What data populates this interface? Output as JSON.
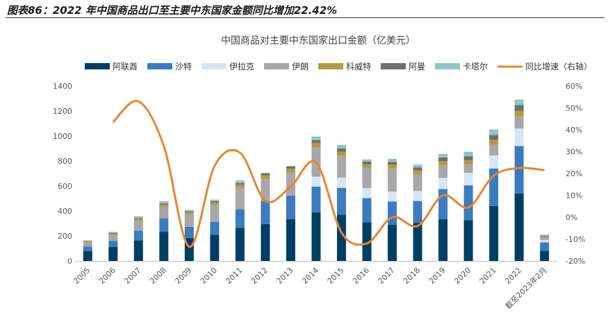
{
  "caption": "图表86：2022 年中国商品出口至主要中东国家金额同比增加22.42%",
  "chart_data": {
    "type": "bar",
    "stacked": true,
    "title": "中国商品对主要中东国家出口金额（亿美元）",
    "categories": [
      "2005",
      "2006",
      "2007",
      "2008",
      "2009",
      "2010",
      "2011",
      "2012",
      "2013",
      "2014",
      "2015",
      "2016",
      "2017",
      "2018",
      "2019",
      "2020",
      "2021",
      "2022",
      "截至2023年2月"
    ],
    "series": [
      {
        "name": "阿联酋",
        "color": "#003f63",
        "values": [
          78,
          112,
          165,
          233,
          183,
          210,
          265,
          295,
          335,
          390,
          370,
          308,
          290,
          305,
          335,
          325,
          440,
          540,
          82
        ]
      },
      {
        "name": "沙特",
        "color": "#3b7bbf",
        "values": [
          38,
          50,
          78,
          108,
          90,
          103,
          150,
          185,
          188,
          205,
          215,
          195,
          185,
          175,
          240,
          280,
          300,
          380,
          67
        ]
      },
      {
        "name": "伊拉克",
        "color": "#d6e6f5",
        "values": [
          0,
          0,
          0,
          0,
          0,
          0,
          0,
          0,
          0,
          80,
          83,
          80,
          80,
          80,
          90,
          100,
          105,
          140,
          18
        ]
      },
      {
        "name": "伊朗",
        "color": "#a8a8a8",
        "values": [
          30,
          45,
          78,
          88,
          102,
          135,
          170,
          175,
          185,
          235,
          175,
          160,
          185,
          135,
          100,
          68,
          85,
          97,
          22
        ]
      },
      {
        "name": "科威特",
        "color": "#b59a3e",
        "values": [
          8,
          10,
          14,
          20,
          16,
          20,
          25,
          30,
          30,
          35,
          32,
          30,
          30,
          30,
          35,
          35,
          40,
          45,
          7
        ]
      },
      {
        "name": "阿曼",
        "color": "#6e6e6e",
        "values": [
          4,
          6,
          8,
          10,
          8,
          10,
          14,
          18,
          20,
          22,
          25,
          22,
          22,
          24,
          28,
          30,
          38,
          45,
          6
        ]
      },
      {
        "name": "卡塔尔",
        "color": "#8fc4c9",
        "values": [
          7,
          10,
          15,
          19,
          9,
          13,
          21,
          0,
          0,
          29,
          28,
          18,
          25,
          22,
          29,
          36,
          45,
          45,
          8
        ]
      }
    ],
    "line": {
      "name": "同比增速（右轴）",
      "color": "#e8842d",
      "axis": "right",
      "values": [
        null,
        43.5,
        53,
        32.5,
        -13.5,
        23.5,
        29.5,
        7.5,
        14,
        25,
        -7,
        -12,
        0,
        -4,
        10,
        4.5,
        19,
        22.5,
        21.5
      ]
    },
    "left_axis": {
      "min": 0,
      "max": 1400,
      "step": 200
    },
    "right_axis": {
      "min": -20,
      "max": 60,
      "step": 10,
      "unit": "%"
    },
    "legend_position": "top"
  }
}
